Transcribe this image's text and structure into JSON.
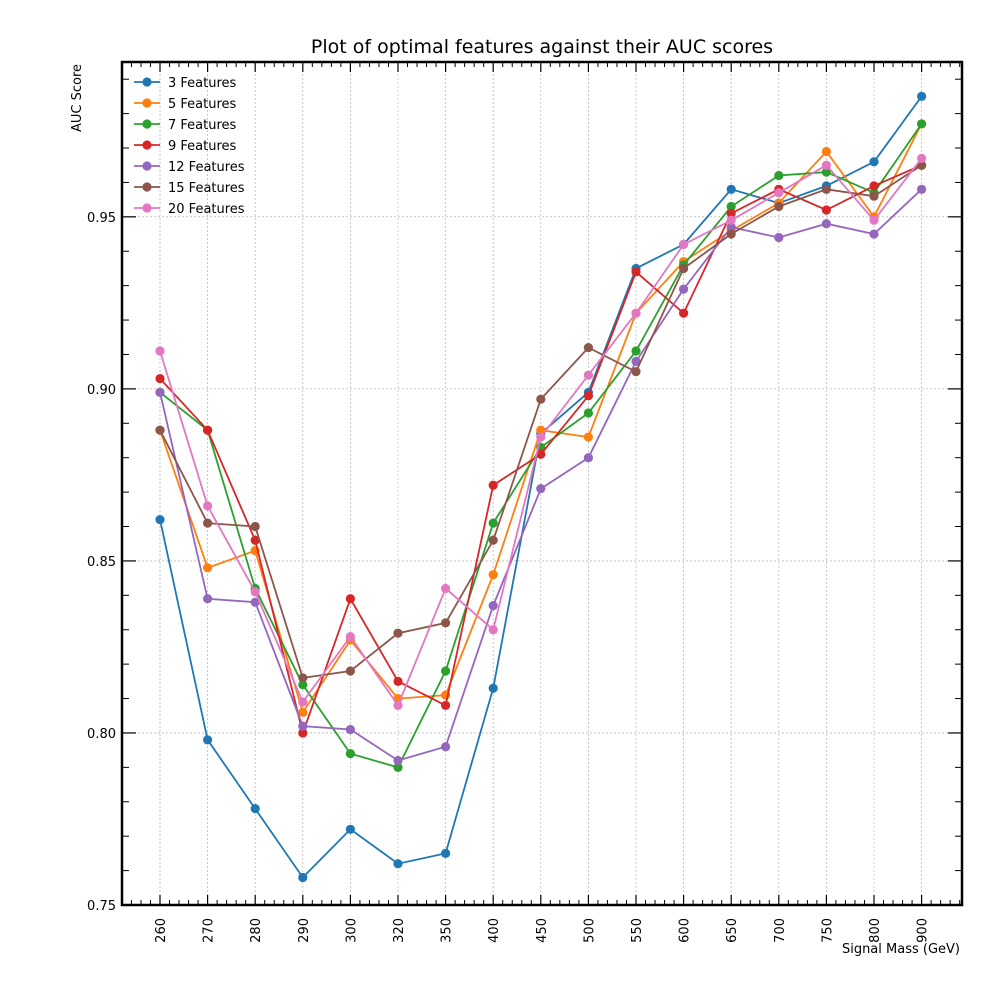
{
  "chart_data": {
    "type": "line",
    "title": "Plot of optimal features against their AUC scores",
    "xlabel": "Signal Mass (GeV)",
    "ylabel": "AUC Score",
    "categories": [
      "260",
      "270",
      "280",
      "290",
      "300",
      "320",
      "350",
      "400",
      "450",
      "500",
      "550",
      "600",
      "650",
      "700",
      "750",
      "800",
      "900"
    ],
    "ylim": [
      0.75,
      0.995
    ],
    "yticks": [
      "0.75",
      "0.80",
      "0.85",
      "0.90",
      "0.95"
    ],
    "grid": true,
    "legend_position": "top-left",
    "series": [
      {
        "name": "3 Features",
        "color": "#1f77b4",
        "values": [
          0.862,
          0.798,
          0.778,
          0.758,
          0.772,
          0.762,
          0.765,
          0.813,
          0.887,
          0.899,
          0.935,
          0.942,
          0.958,
          0.954,
          0.959,
          0.966,
          0.985
        ]
      },
      {
        "name": "5 Features",
        "color": "#ff7f0e",
        "values": [
          0.888,
          0.848,
          0.853,
          0.806,
          0.827,
          0.81,
          0.811,
          0.846,
          0.888,
          0.886,
          0.922,
          0.937,
          0.946,
          0.954,
          0.969,
          0.95,
          0.977
        ]
      },
      {
        "name": "7 Features",
        "color": "#2ca02c",
        "values": [
          0.899,
          0.888,
          0.842,
          0.814,
          0.794,
          0.79,
          0.818,
          0.861,
          0.883,
          0.893,
          0.911,
          0.936,
          0.953,
          0.962,
          0.963,
          0.957,
          0.977
        ]
      },
      {
        "name": "9 Features",
        "color": "#d62728",
        "values": [
          0.903,
          0.888,
          0.856,
          0.8,
          0.839,
          0.815,
          0.808,
          0.872,
          0.881,
          0.898,
          0.934,
          0.922,
          0.951,
          0.958,
          0.952,
          0.959,
          0.965
        ]
      },
      {
        "name": "12 Features",
        "color": "#9467bd",
        "values": [
          0.899,
          0.839,
          0.838,
          0.802,
          0.801,
          0.792,
          0.796,
          0.837,
          0.871,
          0.88,
          0.908,
          0.929,
          0.947,
          0.944,
          0.948,
          0.945,
          0.958
        ]
      },
      {
        "name": "15 Features",
        "color": "#8c564b",
        "values": [
          0.888,
          0.861,
          0.86,
          0.816,
          0.818,
          0.829,
          0.832,
          0.856,
          0.897,
          0.912,
          0.905,
          0.935,
          0.945,
          0.953,
          0.958,
          0.956,
          0.965
        ]
      },
      {
        "name": "20 Features",
        "color": "#e377c2",
        "values": [
          0.911,
          0.866,
          0.841,
          0.809,
          0.828,
          0.808,
          0.842,
          0.83,
          0.886,
          0.904,
          0.922,
          0.942,
          0.949,
          0.957,
          0.965,
          0.949,
          0.967
        ]
      }
    ]
  }
}
